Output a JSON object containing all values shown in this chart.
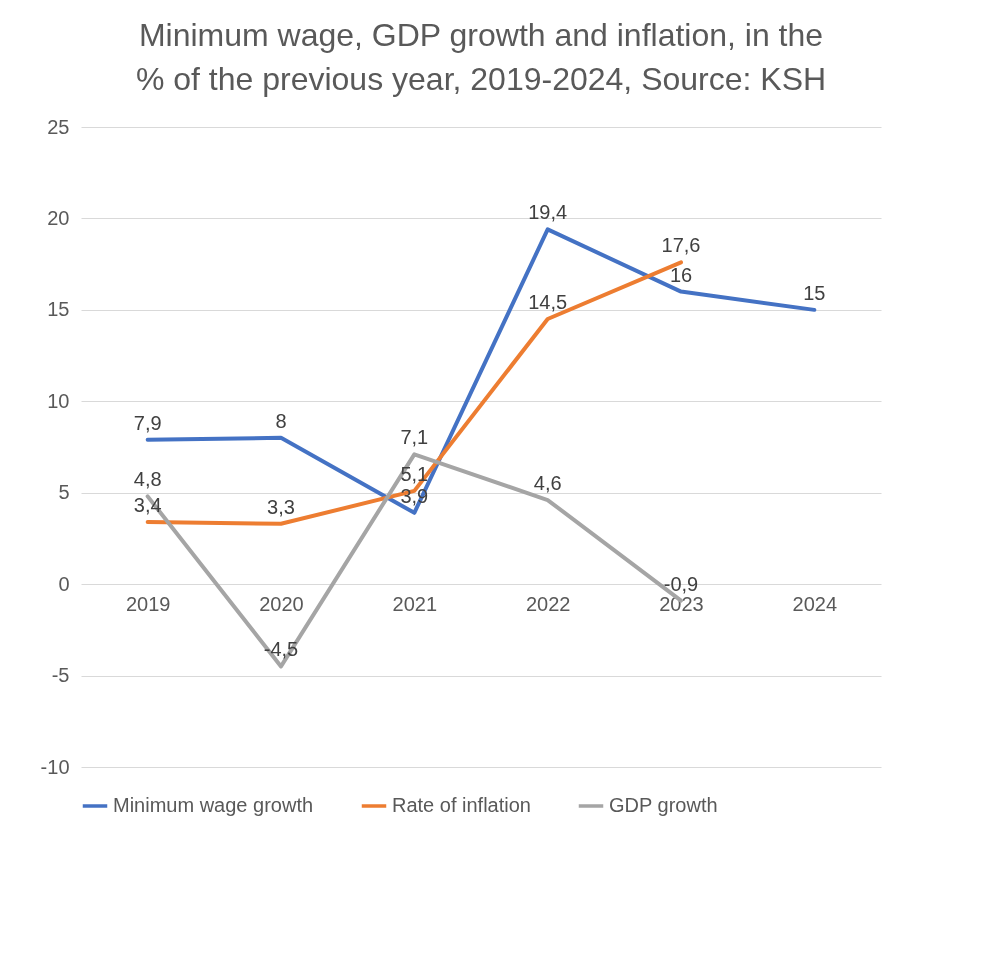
{
  "chart_data": {
    "type": "line",
    "title": "Minimum wage, GDP growth and inflation, in the\n% of the previous year, 2019-2024, Source: KSH",
    "categories": [
      "2019",
      "2020",
      "2021",
      "2022",
      "2023",
      "2024"
    ],
    "series": [
      {
        "name": "Minimum wage growth",
        "color": "#4472c4",
        "values": [
          7.9,
          8,
          3.9,
          19.4,
          16,
          15
        ],
        "value_labels": [
          "7,9",
          "8",
          "3,9",
          "19,4",
          "16",
          "15"
        ]
      },
      {
        "name": "Rate of inflation",
        "color": "#ed7d31",
        "values": [
          3.4,
          3.3,
          5.1,
          14.5,
          17.6,
          null
        ],
        "value_labels": [
          "3,4",
          "3,3",
          "5,1",
          "14,5",
          "17,6",
          null
        ]
      },
      {
        "name": "GDP growth",
        "color": "#a5a5a5",
        "values": [
          4.8,
          -4.5,
          7.1,
          4.6,
          -0.9,
          null
        ],
        "value_labels": [
          "4,8",
          "-4,5",
          "7,1",
          "4,6",
          "-0,9",
          null
        ]
      }
    ],
    "ylim": [
      -10,
      25
    ],
    "yticks": [
      -10,
      -5,
      0,
      5,
      10,
      15,
      20,
      25
    ],
    "grid": "y",
    "legend": "bottom",
    "marker": "none",
    "line_style": "solid"
  }
}
